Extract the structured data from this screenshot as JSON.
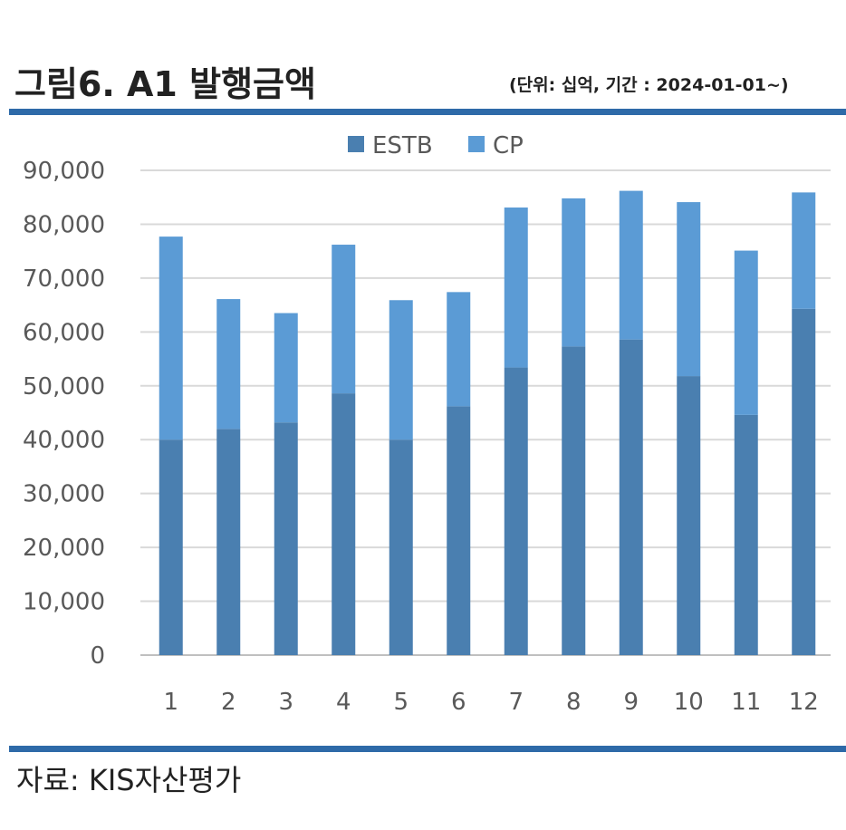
{
  "header": {
    "title": "그림6. A1 발행금액",
    "unit": "(단위: 십억, 기간 : 2024-01-01~)"
  },
  "footer": {
    "source": "자료: KIS자산평가"
  },
  "colors": {
    "estb": "#4a7fb0",
    "cp": "#5b9bd5",
    "rule": "#2e6aa8",
    "grid": "#d9d9d9"
  },
  "chart_data": {
    "type": "bar",
    "stacked": true,
    "categories": [
      "1",
      "2",
      "3",
      "4",
      "5",
      "6",
      "7",
      "8",
      "9",
      "10",
      "11",
      "12"
    ],
    "series": [
      {
        "name": "ESTB",
        "values": [
          40000,
          42000,
          43200,
          48600,
          40000,
          46200,
          53400,
          57300,
          58600,
          51800,
          44600,
          64300
        ]
      },
      {
        "name": "CP",
        "values": [
          37700,
          24100,
          20300,
          27600,
          25900,
          21200,
          29700,
          27500,
          27600,
          32300,
          30500,
          21600
        ]
      }
    ],
    "ylim": [
      0,
      90000
    ],
    "yticks": [
      "0",
      "10,000",
      "20,000",
      "30,000",
      "40,000",
      "50,000",
      "60,000",
      "70,000",
      "80,000",
      "90,000"
    ],
    "grid": true,
    "legend": "top-center"
  }
}
